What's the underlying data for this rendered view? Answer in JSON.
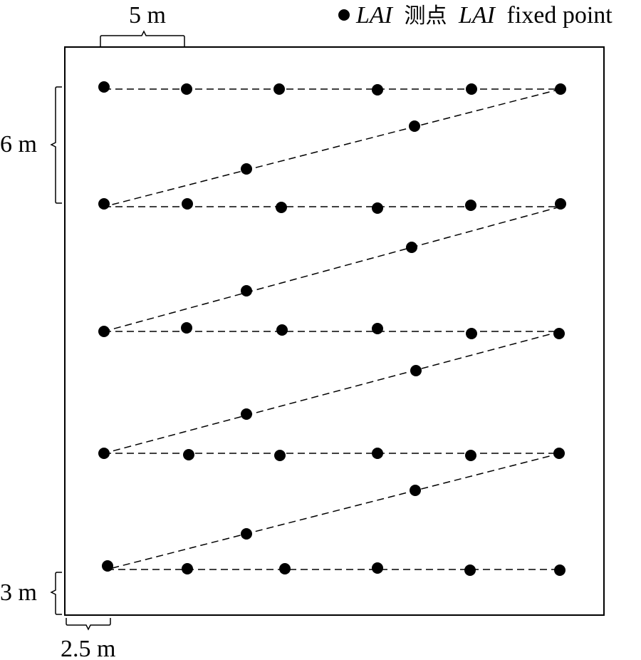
{
  "legend": {
    "label_italic": "LAI",
    "label_zh": "测点",
    "label_italic_en": "LAI",
    "label_en": "fixed point"
  },
  "dimensions": {
    "top": "5 m",
    "left_upper": "6 m",
    "left_lower": "3 m",
    "bottom": "2.5 m"
  },
  "colors": {
    "point": "#000000",
    "line": "#000000",
    "frame": "#000000"
  }
}
